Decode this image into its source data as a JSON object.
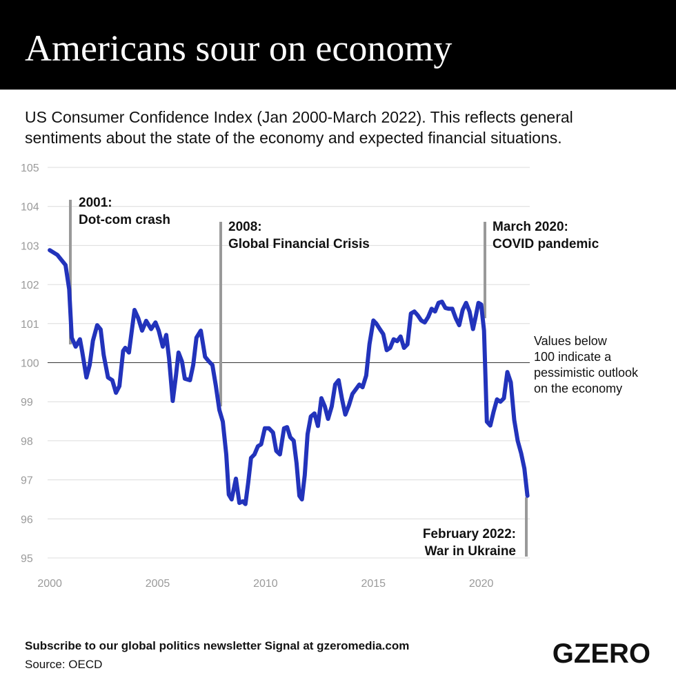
{
  "chart_data": {
    "type": "line",
    "title": "Americans sour on economy",
    "subtitle": [
      "US Consumer Confidence Index (Jan 2000-March 2022). This reflects general",
      "sentiments about the state of the economy and expected financial situations."
    ],
    "x": [
      2000.0,
      2000.35,
      2000.73,
      2000.9,
      2001.02,
      2001.2,
      2001.4,
      2001.5,
      2001.7,
      2001.85,
      2002.0,
      2002.2,
      2002.36,
      2002.5,
      2002.7,
      2002.9,
      2003.07,
      2003.23,
      2003.4,
      2003.5,
      2003.67,
      2003.93,
      2004.1,
      2004.28,
      2004.47,
      2004.7,
      2004.9,
      2005.05,
      2005.24,
      2005.4,
      2005.53,
      2005.7,
      2005.85,
      2005.97,
      2006.13,
      2006.26,
      2006.5,
      2006.65,
      2006.8,
      2007.0,
      2007.2,
      2007.38,
      2007.54,
      2007.7,
      2007.86,
      2008.02,
      2008.18,
      2008.3,
      2008.43,
      2008.63,
      2008.79,
      2008.95,
      2009.07,
      2009.2,
      2009.33,
      2009.49,
      2009.65,
      2009.8,
      2009.97,
      2010.16,
      2010.35,
      2010.5,
      2010.67,
      2010.86,
      2011.0,
      2011.15,
      2011.31,
      2011.44,
      2011.57,
      2011.69,
      2011.82,
      2011.95,
      2012.1,
      2012.27,
      2012.43,
      2012.59,
      2012.75,
      2012.9,
      2013.07,
      2013.23,
      2013.39,
      2013.55,
      2013.7,
      2013.87,
      2014.03,
      2014.19,
      2014.35,
      2014.5,
      2014.67,
      2014.82,
      2015.0,
      2015.14,
      2015.3,
      2015.46,
      2015.62,
      2015.78,
      2015.94,
      2016.1,
      2016.26,
      2016.42,
      2016.58,
      2016.74,
      2016.9,
      2017.06,
      2017.22,
      2017.38,
      2017.54,
      2017.7,
      2017.86,
      2018.02,
      2018.18,
      2018.34,
      2018.5,
      2018.66,
      2018.82,
      2018.98,
      2019.14,
      2019.3,
      2019.46,
      2019.62,
      2019.74,
      2019.87,
      2020.0,
      2020.13,
      2020.26,
      2020.42,
      2020.57,
      2020.73,
      2020.89,
      2021.05,
      2021.21,
      2021.37,
      2021.53,
      2021.69,
      2021.85,
      2022.0,
      2022.14
    ],
    "values": [
      102.88,
      102.76,
      102.5,
      101.88,
      100.64,
      100.41,
      100.6,
      100.3,
      99.62,
      99.94,
      100.56,
      100.96,
      100.85,
      100.2,
      99.62,
      99.55,
      99.23,
      99.4,
      100.3,
      100.38,
      100.26,
      101.35,
      101.14,
      100.82,
      101.07,
      100.86,
      101.03,
      100.82,
      100.41,
      100.71,
      100.11,
      99.02,
      99.67,
      100.26,
      100.03,
      99.59,
      99.55,
      99.94,
      100.64,
      100.82,
      100.15,
      100.03,
      99.94,
      99.41,
      98.79,
      98.49,
      97.65,
      96.62,
      96.5,
      97.03,
      96.41,
      96.45,
      96.38,
      96.94,
      97.56,
      97.65,
      97.86,
      97.91,
      98.32,
      98.32,
      98.21,
      97.74,
      97.65,
      98.32,
      98.35,
      98.09,
      98.0,
      97.43,
      96.59,
      96.5,
      97.12,
      98.17,
      98.62,
      98.7,
      98.38,
      99.09,
      98.88,
      98.56,
      98.88,
      99.44,
      99.55,
      99.06,
      98.67,
      98.91,
      99.2,
      99.32,
      99.44,
      99.37,
      99.67,
      100.47,
      101.08,
      101.0,
      100.86,
      100.73,
      100.32,
      100.38,
      100.6,
      100.55,
      100.67,
      100.38,
      100.47,
      101.26,
      101.31,
      101.21,
      101.08,
      101.03,
      101.17,
      101.38,
      101.31,
      101.53,
      101.56,
      101.4,
      101.38,
      101.38,
      101.14,
      100.96,
      101.35,
      101.53,
      101.31,
      100.86,
      101.17,
      101.53,
      101.49,
      100.82,
      98.49,
      98.39,
      98.74,
      99.06,
      99.0,
      99.09,
      99.76,
      99.5,
      98.53,
      98.0,
      97.68,
      97.29,
      96.59
    ],
    "color": "#2233bb",
    "xlim": [
      1999.9,
      2022.25
    ],
    "xticks": [
      2000,
      2005,
      2010,
      2015,
      2020
    ],
    "ylim": [
      95,
      105
    ],
    "yticks": [
      95,
      96,
      97,
      98,
      99,
      100,
      101,
      102,
      103,
      104,
      105
    ],
    "grid": true,
    "reference_line": 100,
    "annotations": [
      {
        "lines": [
          "2001:",
          "Dot-com crash"
        ]
      },
      {
        "lines": [
          "2008:",
          "Global Financial Crisis"
        ]
      },
      {
        "lines": [
          "March 2020:",
          "COVID pandemic"
        ]
      },
      {
        "lines": [
          "February 2022:",
          "War in Ukraine"
        ]
      }
    ],
    "note": [
      "Values below",
      "100 indicate a",
      "pessimistic outlook",
      "on the economy"
    ],
    "footer": "Subscribe to our global politics newsletter Signal at gzeromedia.com",
    "source": "Source: OECD",
    "logo": "GZERO"
  }
}
